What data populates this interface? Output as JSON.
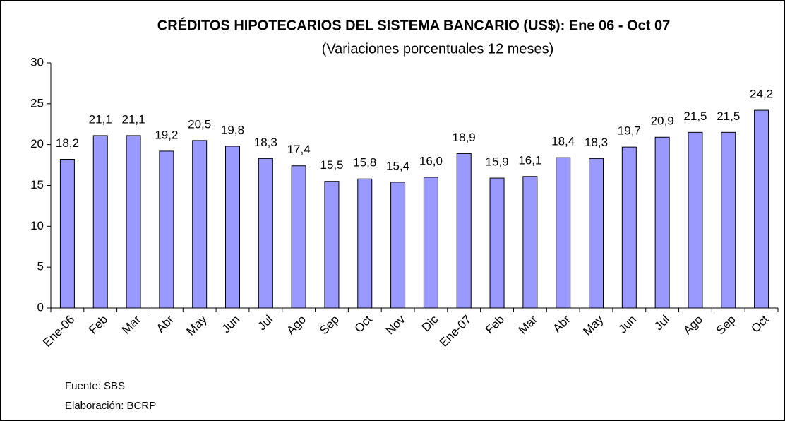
{
  "chart_data": {
    "type": "bar",
    "title": "CRÉDITOS HIPOTECARIOS DEL SISTEMA BANCARIO (US$): Ene 06 - Oct 07",
    "subtitle": "(Variaciones porcentuales 12 meses)",
    "categories": [
      "Ene-06",
      "Feb",
      "Mar",
      "Abr",
      "May",
      "Jun",
      "Jul",
      "Ago",
      "Sep",
      "Oct",
      "Nov",
      "Dic",
      "Ene-07",
      "Feb",
      "Mar",
      "Abr",
      "May",
      "Jun",
      "Jul",
      "Ago",
      "Sep",
      "Oct"
    ],
    "values": [
      18.2,
      21.1,
      21.1,
      19.2,
      20.5,
      19.8,
      18.3,
      17.4,
      15.5,
      15.8,
      15.4,
      16.0,
      18.9,
      15.9,
      16.1,
      18.4,
      18.3,
      19.7,
      20.9,
      21.5,
      21.5,
      24.2
    ],
    "value_labels": [
      "18,2",
      "21,1",
      "21,1",
      "19,2",
      "20,5",
      "19,8",
      "18,3",
      "17,4",
      "15,5",
      "15,8",
      "15,4",
      "16,0",
      "18,9",
      "15,9",
      "16,1",
      "18,4",
      "18,3",
      "19,7",
      "20,9",
      "21,5",
      "21,5",
      "24,2"
    ],
    "color": "#9999ff",
    "ylim": [
      0,
      30
    ],
    "yticks": [
      0,
      5,
      10,
      15,
      20,
      25,
      30
    ],
    "grid": false,
    "source": "Fuente: SBS",
    "credit": "Elaboración: BCRP"
  }
}
